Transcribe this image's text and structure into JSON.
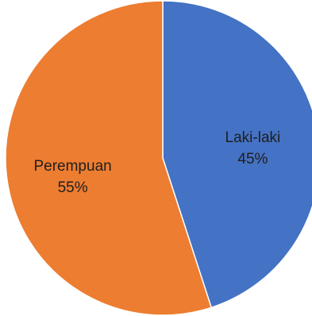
{
  "chart_data": {
    "type": "pie",
    "slices": [
      {
        "label": "Laki-laki",
        "value": 45,
        "percent_label": "45%",
        "color": "#4472C4"
      },
      {
        "label": "Perempuan",
        "value": 55,
        "percent_label": "55%",
        "color": "#ED7D31"
      }
    ],
    "start": "12 o'clock",
    "direction": "clockwise",
    "slice_border_color": "#ffffff",
    "label_color": "#1f1f1f"
  }
}
